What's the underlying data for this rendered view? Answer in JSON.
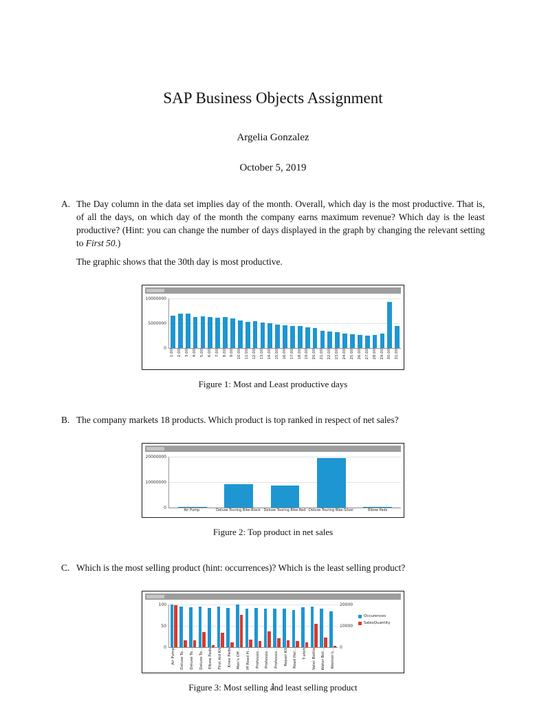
{
  "doc": {
    "title": "SAP Business Objects Assignment",
    "author": "Argelia Gonzalez",
    "date": "October 5, 2019",
    "page_number": "1"
  },
  "items": {
    "a_label": "A.",
    "a_text1": "The Day column in the data set implies day of the month. Overall, which day is the most productive. That is, of all the days, on which day of the month the company earns maximum revenue? Which day is the least productive? (Hint: you can change the number of days displayed in the graph by changing the relevant setting to ",
    "a_italic": "First 50",
    "a_text2": ".)",
    "a_followup": "The graphic shows that the 30th day is most productive.",
    "b_label": "B.",
    "b_text": "The company markets 18 products. Which product is top ranked in respect of net sales?",
    "c_label": "C.",
    "c_text": "Which is the most selling product (hint: occurrences)? Which is the least selling product?"
  },
  "figures": {
    "fig1_caption": "Figure 1: Most and Least productive days",
    "fig2_caption": "Figure 2: Top product in net sales",
    "fig3_caption": "Figure 3: Most selling and least selling product"
  },
  "colors": {
    "bar_blue": "#1e96d2",
    "bar_red": "#d63b2f",
    "chart_header_gray": "#9d9d9d"
  },
  "chart_data": [
    {
      "type": "bar",
      "title": "",
      "categories": [
        "1.00",
        "2.00",
        "3.00",
        "4.00",
        "5.00",
        "6.00",
        "7.00",
        "8.00",
        "9.00",
        "10.00",
        "11.00",
        "12.00",
        "13.00",
        "14.00",
        "15.00",
        "16.00",
        "17.00",
        "18.00",
        "19.00",
        "20.00",
        "21.00",
        "22.00",
        "23.00",
        "24.00",
        "25.00",
        "26.00",
        "27.00",
        "28.00",
        "29.00",
        "30.00",
        "31.00"
      ],
      "values": [
        6600000,
        7000000,
        6900000,
        6300000,
        6400000,
        6300000,
        6200000,
        6300000,
        6000000,
        5600000,
        5300000,
        5400000,
        5100000,
        5000000,
        4800000,
        4600000,
        4400000,
        4500000,
        4200000,
        4000000,
        3500000,
        3300000,
        3200000,
        3000000,
        2800000,
        2600000,
        2500000,
        2700000,
        3000000,
        9300000,
        4500000
      ],
      "ylim": [
        0,
        10000000
      ],
      "yticks": [
        0,
        5000000,
        10000000
      ],
      "label_rotation": 90,
      "legend_position": "none",
      "grid": true
    },
    {
      "type": "bar",
      "title": "",
      "categories": [
        "Air Pump",
        "Deluxe Touring Bike-Black",
        "Deluxe Touring Bike-Red",
        "Deluxe Touring Bike-Silver",
        "Elbow Pads"
      ],
      "values": [
        250000,
        9200000,
        8700000,
        19600000,
        300000
      ],
      "ylim": [
        0,
        20000000
      ],
      "yticks": [
        0,
        10000000,
        20000000
      ],
      "label_rotation": 0,
      "legend_position": "none",
      "grid": true
    },
    {
      "type": "bar",
      "title": "",
      "categories": [
        "Air Pump",
        "Deluxe To...",
        "Deluxe To...",
        "Deluxe To...",
        "Elbow Pads",
        "First Aid Kit",
        "Knee Pads",
        "Men's Off...",
        "Off Road H...",
        "Professio...",
        "Professio...",
        "Professio...",
        "Repair Kit",
        "Road Hel...",
        "T-shirt",
        "Water Bottle",
        "Water Bot...",
        "Women's..."
      ],
      "series": [
        {
          "name": "Occurences",
          "axis": "left",
          "values": [
            100,
            95,
            94,
            96,
            93,
            95,
            92,
            100,
            90,
            92,
            90,
            91,
            90,
            88,
            94,
            96,
            90,
            85
          ]
        },
        {
          "name": "SalesQuantity",
          "axis": "right",
          "values": [
            19600,
            3200,
            3400,
            7200,
            1200,
            6800,
            2200,
            15200,
            3600,
            3000,
            7600,
            4200,
            3400,
            3000,
            2400,
            11200,
            4600,
            800
          ]
        }
      ],
      "ylim_left": [
        0,
        100
      ],
      "ylim_right": [
        0,
        20000
      ],
      "yticks_left": [
        0,
        50,
        100
      ],
      "yticks_right": [
        0,
        10000,
        20000
      ],
      "label_rotation": 90,
      "legend": [
        "Occurences",
        "SalesQuantity"
      ],
      "legend_position": "right",
      "grid": true
    }
  ]
}
